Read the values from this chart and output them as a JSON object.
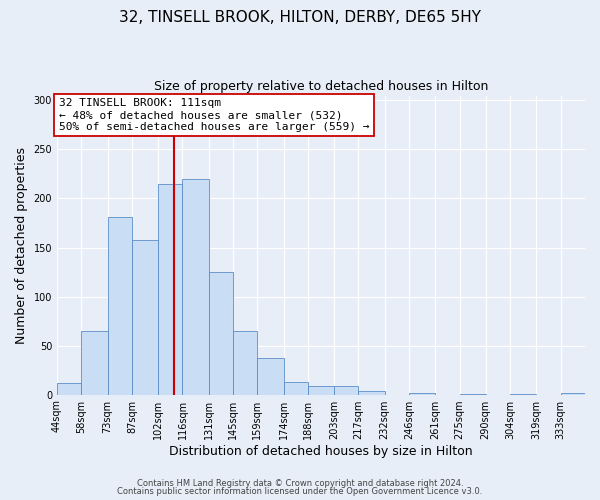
{
  "title": "32, TINSELL BROOK, HILTON, DERBY, DE65 5HY",
  "subtitle": "Size of property relative to detached houses in Hilton",
  "xlabel": "Distribution of detached houses by size in Hilton",
  "ylabel": "Number of detached properties",
  "bin_labels": [
    "44sqm",
    "58sqm",
    "73sqm",
    "87sqm",
    "102sqm",
    "116sqm",
    "131sqm",
    "145sqm",
    "159sqm",
    "174sqm",
    "188sqm",
    "203sqm",
    "217sqm",
    "232sqm",
    "246sqm",
    "261sqm",
    "275sqm",
    "290sqm",
    "304sqm",
    "319sqm",
    "333sqm"
  ],
  "bin_edges": [
    44,
    58,
    73,
    87,
    102,
    116,
    131,
    145,
    159,
    174,
    188,
    203,
    217,
    232,
    246,
    261,
    275,
    290,
    304,
    319,
    333
  ],
  "bar_heights": [
    12,
    65,
    181,
    158,
    215,
    220,
    125,
    65,
    37,
    13,
    9,
    9,
    4,
    0,
    2,
    0,
    1,
    0,
    1,
    0,
    2
  ],
  "bar_color": "#c9ddf5",
  "bar_edge_color": "#5b8dc8",
  "reference_line_x": 111,
  "reference_line_color": "#cc0000",
  "annotation_text": "32 TINSELL BROOK: 111sqm\n← 48% of detached houses are smaller (532)\n50% of semi-detached houses are larger (559) →",
  "annotation_box_facecolor": "#ffffff",
  "annotation_box_edgecolor": "#cc0000",
  "ylim": [
    0,
    305
  ],
  "yticks": [
    0,
    50,
    100,
    150,
    200,
    250,
    300
  ],
  "footer_line1": "Contains HM Land Registry data © Crown copyright and database right 2024.",
  "footer_line2": "Contains public sector information licensed under the Open Government Licence v3.0.",
  "background_color": "#e8eef8",
  "plot_background": "#e8eef8",
  "title_fontsize": 11,
  "subtitle_fontsize": 9,
  "tick_fontsize": 7,
  "axis_label_fontsize": 9,
  "annotation_fontsize": 8,
  "footer_fontsize": 6
}
